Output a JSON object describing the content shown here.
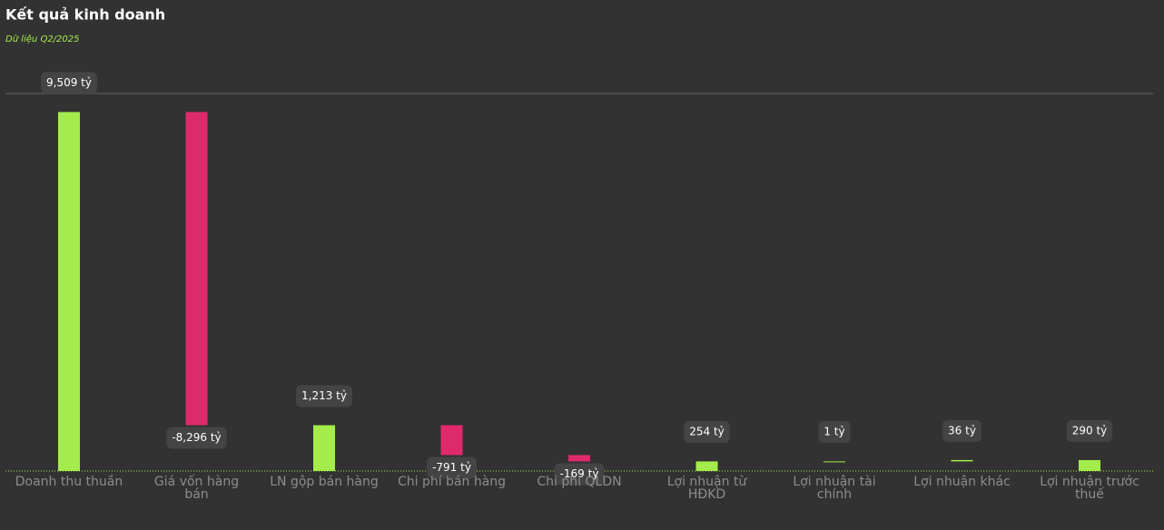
{
  "chart_data": {
    "type": "waterfall",
    "title": "Kết quả kinh doanh",
    "subtitle": "Dữ liệu Q2/2025",
    "categories": [
      "Doanh thu thuần",
      "Giá vốn hàng bán",
      "LN gộp bán hàng",
      "Chi phí bán hàng",
      "Chi phí QLDN",
      "Lợi nhuận từ HĐKD",
      "Lợi nhuận tài chính",
      "Lợi nhuận khác",
      "Lợi nhuận trước thuế"
    ],
    "values": [
      9509,
      -8296,
      1213,
      -791,
      -169,
      254,
      1,
      36,
      290
    ],
    "value_labels": [
      "9,509 tỷ",
      "-8,296 tỷ",
      "1,213 tỷ",
      "-791 tỷ",
      "-169 tỷ",
      "254 tỷ",
      "1 tỷ",
      "36 tỷ",
      "290 tỷ"
    ],
    "totals": [
      0,
      2,
      5,
      8
    ],
    "positive_color": "#a3ec4b",
    "negative_color": "#de2a6b",
    "ylim": [
      0,
      10000
    ]
  }
}
